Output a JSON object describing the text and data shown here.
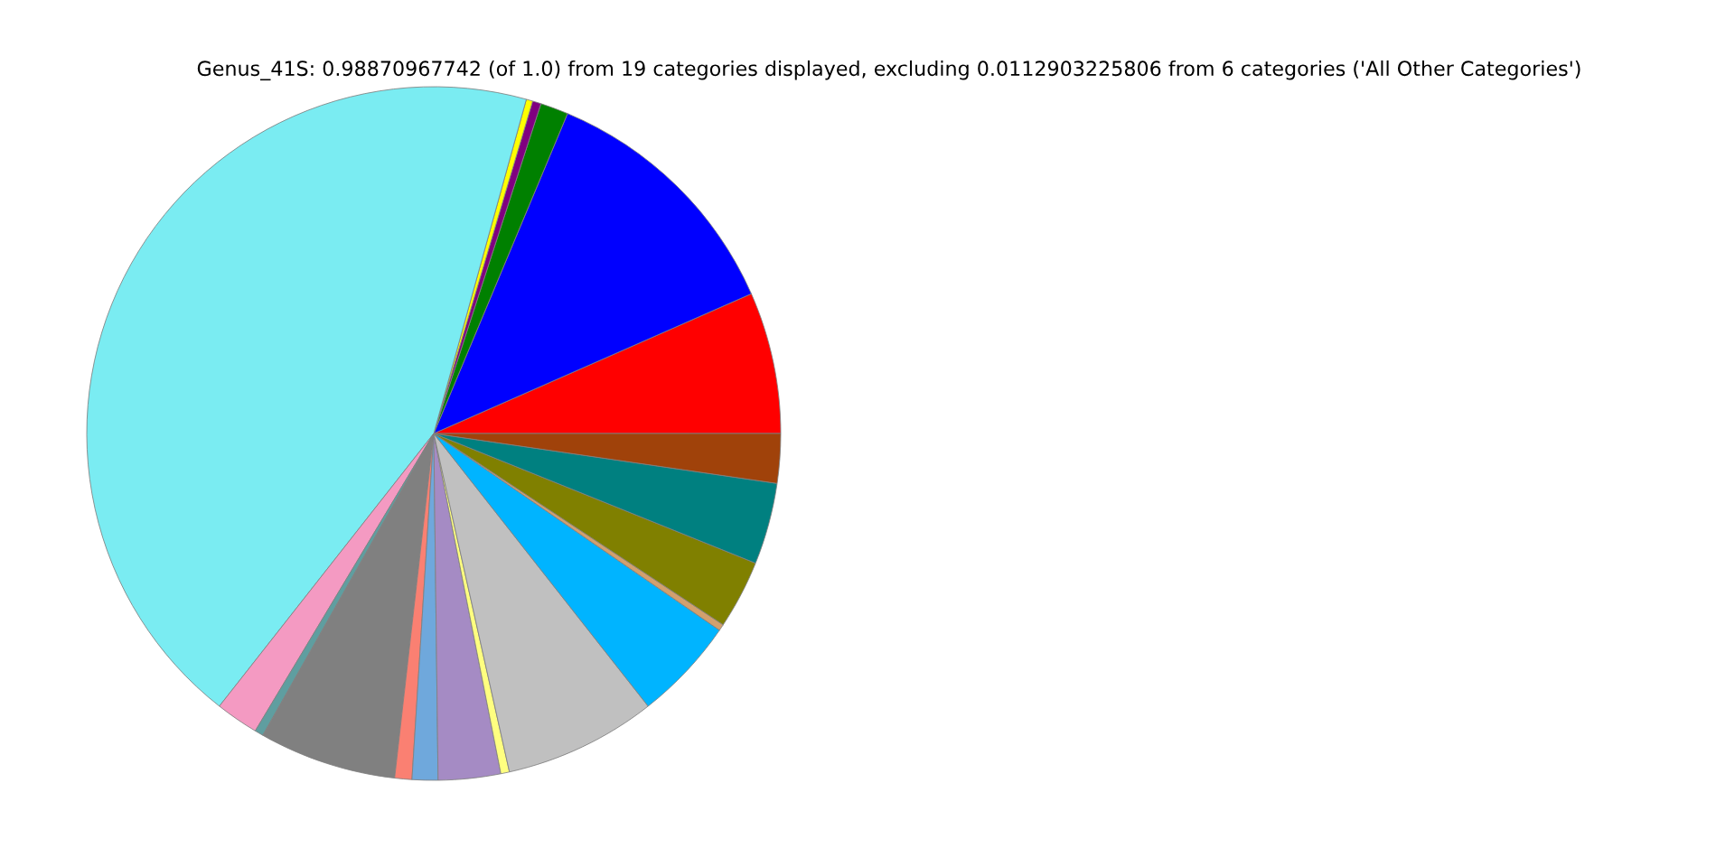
{
  "chart_data": {
    "type": "pie",
    "title": "Genus_41S: 0.98870967742 (of 1.0) from 19 categories displayed, excluding 0.0112903225806 from 6 categories ('All Other Categories')",
    "categories": [
      null,
      null,
      null,
      null,
      null,
      null,
      null,
      null,
      null,
      null,
      null,
      null,
      null,
      null,
      null,
      null,
      null,
      null,
      null
    ],
    "values": [
      6.6,
      12.1,
      1.3,
      0.4,
      0.3,
      43.7,
      2.0,
      0.4,
      6.4,
      0.8,
      1.2,
      2.9,
      0.4,
      7.1,
      4.8,
      0.3,
      3.2,
      3.8,
      2.3
    ],
    "colors": [
      "#ff0000",
      "#0000ff",
      "#008000",
      "#800080",
      "#ffff00",
      "#7aecf2",
      "#f49ac2",
      "#5f9ea0",
      "#808080",
      "#fa8072",
      "#6fa8dc",
      "#a58bc4",
      "#ffff80",
      "#c0c0c0",
      "#00b4ff",
      "#d2a06e",
      "#808000",
      "#008080",
      "#a0420a"
    ],
    "legend": false
  }
}
